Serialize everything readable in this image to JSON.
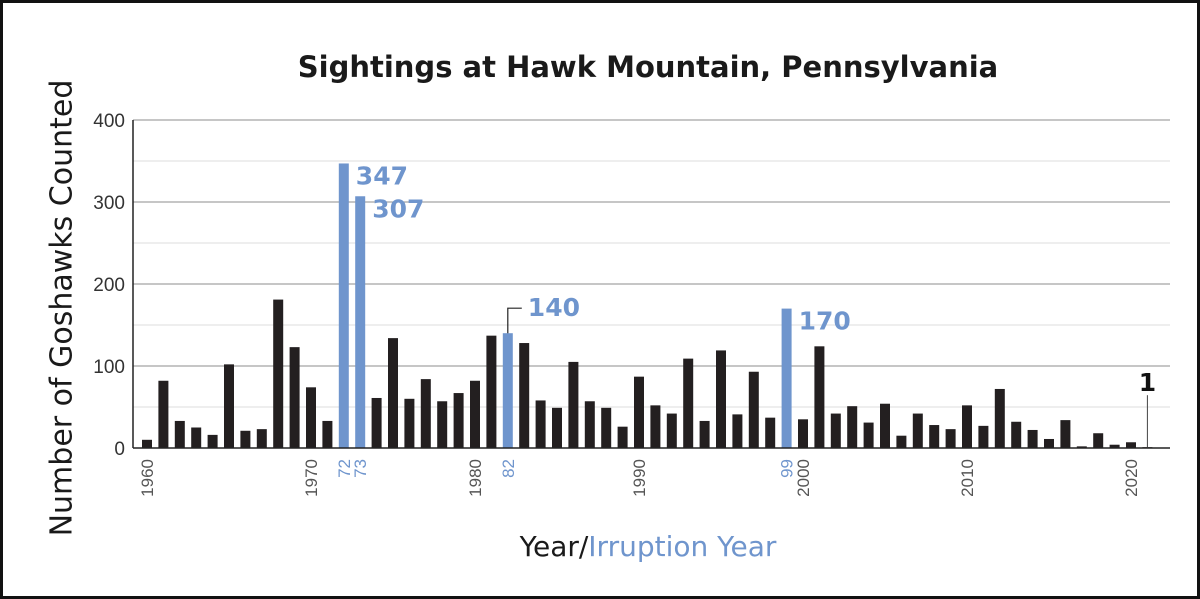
{
  "chart_data": {
    "type": "bar",
    "title": "Sightings at Hawk Mountain, Pennsylvania",
    "ylabel": "Number of Goshawks Counted",
    "xlabel_prefix": "Year/",
    "xlabel_highlight": "Irruption Year",
    "ylim": [
      0,
      400
    ],
    "yticks": [
      "0",
      "100",
      "200",
      "300",
      "400"
    ],
    "grid": true,
    "colors": {
      "normal": "#231f20",
      "irruption": "#6f95cd"
    },
    "years": [
      1960,
      1961,
      1962,
      1963,
      1964,
      1965,
      1966,
      1967,
      1968,
      1969,
      1970,
      1971,
      1972,
      1973,
      1974,
      1975,
      1976,
      1977,
      1978,
      1979,
      1980,
      1981,
      1982,
      1983,
      1984,
      1985,
      1986,
      1987,
      1988,
      1989,
      1990,
      1991,
      1992,
      1993,
      1994,
      1995,
      1996,
      1997,
      1998,
      1999,
      2000,
      2001,
      2002,
      2003,
      2004,
      2005,
      2006,
      2007,
      2008,
      2009,
      2010,
      2011,
      2012,
      2013,
      2014,
      2015,
      2016,
      2017,
      2018,
      2019,
      2020,
      2021
    ],
    "values": [
      10,
      82,
      33,
      25,
      16,
      102,
      21,
      23,
      181,
      123,
      74,
      33,
      347,
      307,
      61,
      134,
      60,
      84,
      57,
      67,
      82,
      137,
      140,
      128,
      58,
      49,
      105,
      57,
      49,
      26,
      87,
      52,
      42,
      109,
      33,
      119,
      41,
      93,
      37,
      170,
      35,
      124,
      42,
      51,
      31,
      54,
      15,
      42,
      28,
      23,
      52,
      27,
      72,
      32,
      22,
      11,
      34,
      2,
      18,
      4,
      7,
      1
    ],
    "irruption_years": [
      1972,
      1973,
      1982,
      1999
    ],
    "xtick_labels": [
      {
        "year": 1960,
        "text": "1960"
      },
      {
        "year": 1970,
        "text": "1970"
      },
      {
        "year": 1972,
        "text": "72",
        "highlight": true
      },
      {
        "year": 1973,
        "text": "73",
        "highlight": true
      },
      {
        "year": 1980,
        "text": "1980"
      },
      {
        "year": 1982,
        "text": "82",
        "highlight": true
      },
      {
        "year": 1990,
        "text": "1990"
      },
      {
        "year": 1999,
        "text": "99",
        "highlight": true
      },
      {
        "year": 2000,
        "text": "2000"
      },
      {
        "year": 2010,
        "text": "2010"
      },
      {
        "year": 2020,
        "text": "2020"
      }
    ],
    "annotations": [
      {
        "year": 1972,
        "text": "347"
      },
      {
        "year": 1973,
        "text": "307"
      },
      {
        "year": 1982,
        "text": "140"
      },
      {
        "year": 1999,
        "text": "170"
      },
      {
        "year": 2021,
        "text": "1"
      }
    ]
  }
}
